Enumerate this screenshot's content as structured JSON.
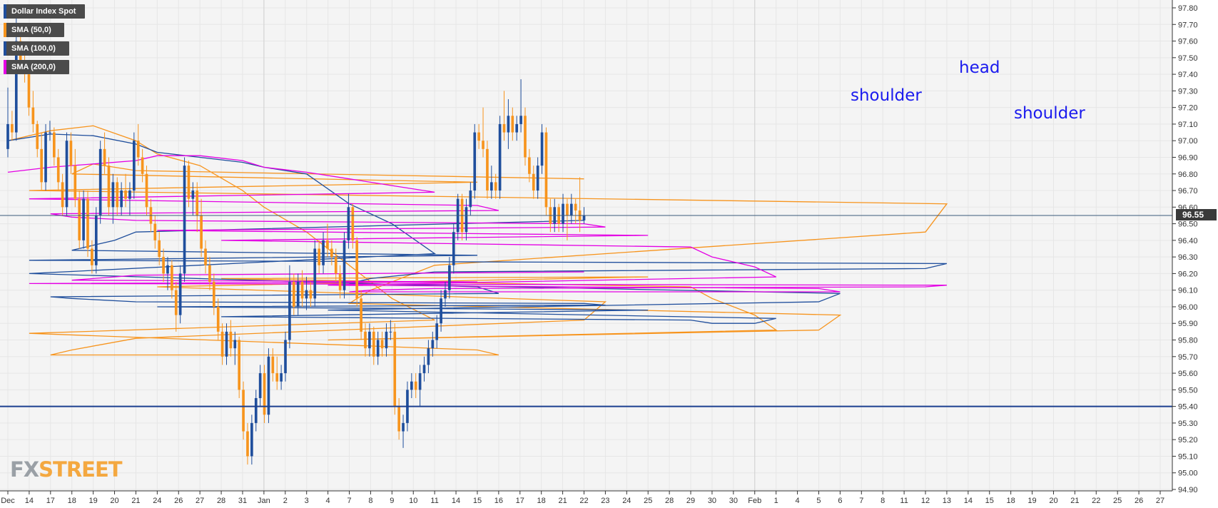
{
  "legend": [
    {
      "label": "Dollar Index Spot",
      "color": "#1f4e9c"
    },
    {
      "label": "SMA (50,0)",
      "color": "#f7941d"
    },
    {
      "label": "SMA (100,0)",
      "color": "#1f4e9c"
    },
    {
      "label": "SMA (200,0)",
      "color": "#e400e4"
    }
  ],
  "annotations": {
    "left_shoulder": "shoulder",
    "head": "head",
    "right_shoulder": "shoulder"
  },
  "price_tag": "96.55",
  "logo": {
    "fx": "FX",
    "street": "STREET"
  },
  "colors": {
    "bull_candle": "#1f4e9c",
    "bear_candle": "#f7941d",
    "support_line": "#1b3f8f",
    "annotation": "#1a1aee",
    "sma50": "#f7941d",
    "sma100": "#1f4e9c",
    "sma200": "#e400e4"
  },
  "chart_data": {
    "type": "line",
    "title": "Dollar Index Spot",
    "ylim": [
      94.9,
      97.8
    ],
    "y_ticks": [
      "97.80",
      "97.70",
      "97.60",
      "97.50",
      "97.40",
      "97.30",
      "97.20",
      "97.10",
      "97.00",
      "96.90",
      "96.80",
      "96.70",
      "96.60",
      "96.50",
      "96.40",
      "96.30",
      "96.20",
      "96.10",
      "96.00",
      "95.90",
      "95.80",
      "95.70",
      "95.60",
      "95.50",
      "95.40",
      "95.30",
      "95.20",
      "95.10",
      "95.00",
      "94.90"
    ],
    "x_ticks": [
      "Dec",
      "14",
      "17",
      "18",
      "19",
      "20",
      "21",
      "24",
      "26",
      "27",
      "28",
      "31",
      "Jan",
      "2",
      "3",
      "4",
      "7",
      "8",
      "9",
      "10",
      "11",
      "14",
      "15",
      "16",
      "17",
      "18",
      "21",
      "22",
      "23",
      "24",
      "25",
      "28",
      "29",
      "30",
      "30",
      "Feb",
      "1",
      "4",
      "5",
      "6",
      "7",
      "8",
      "11",
      "12",
      "13",
      "14",
      "15",
      "18",
      "19",
      "20",
      "21",
      "22",
      "25",
      "26",
      "27"
    ],
    "grid": true,
    "current_price": 96.55,
    "support_level": 95.4,
    "series": [
      {
        "name": "SMA (50,0)",
        "color": "#f7941d",
        "x": [
          "Dec",
          "17",
          "19",
          "21",
          "24",
          "27",
          "31",
          "Jan",
          "3",
          "7",
          "9",
          "11",
          "14",
          "15",
          "16",
          "17",
          "18",
          "21",
          "22",
          "23",
          "24",
          "25",
          "28",
          "29",
          "30",
          "Feb",
          "1",
          "4",
          "5",
          "6",
          "7",
          "8",
          "11",
          "12",
          "13",
          "14",
          "15",
          "18",
          "19",
          "20",
          "21",
          "22"
        ],
        "values": [
          97.0,
          97.06,
          97.09,
          97.0,
          96.92,
          96.85,
          96.7,
          96.6,
          96.45,
          96.25,
          96.05,
          95.92,
          95.84,
          95.74,
          95.71,
          95.71,
          95.74,
          95.81,
          95.92,
          96.03,
          96.12,
          96.18,
          96.17,
          96.12,
          96.05,
          95.95,
          95.86,
          95.8,
          95.86,
          95.95,
          96.02,
          96.1,
          96.25,
          96.45,
          96.62,
          96.7,
          96.75,
          96.8,
          96.86,
          96.84,
          96.82,
          96.77
        ]
      },
      {
        "name": "SMA (100,0)",
        "color": "#1f4e9c",
        "x": [
          "Dec",
          "17",
          "19",
          "21",
          "24",
          "27",
          "31",
          "Jan",
          "3",
          "7",
          "9",
          "11",
          "14",
          "15",
          "16",
          "17",
          "18",
          "21",
          "22",
          "23",
          "24",
          "25",
          "28",
          "29",
          "30",
          "Feb",
          "1",
          "4",
          "5",
          "6",
          "7",
          "8",
          "11",
          "12",
          "13",
          "14",
          "15",
          "18",
          "19",
          "20",
          "21",
          "22"
        ],
        "values": [
          97.0,
          97.04,
          97.03,
          96.98,
          96.93,
          96.9,
          96.87,
          96.84,
          96.8,
          96.62,
          96.5,
          96.32,
          96.2,
          96.12,
          96.08,
          96.06,
          96.05,
          96.03,
          96.02,
          96.01,
          96.0,
          95.98,
          95.94,
          95.92,
          95.9,
          95.9,
          95.93,
          95.98,
          96.03,
          96.08,
          96.14,
          96.17,
          96.21,
          96.23,
          96.26,
          96.28,
          96.31,
          96.34,
          96.37,
          96.4,
          96.45,
          96.52
        ]
      },
      {
        "name": "SMA (200,0)",
        "color": "#e400e4",
        "x": [
          "Dec",
          "17",
          "19",
          "21",
          "24",
          "27",
          "31",
          "Jan",
          "3",
          "7",
          "9",
          "11",
          "14",
          "15",
          "16",
          "17",
          "18",
          "21",
          "22",
          "23",
          "24",
          "25",
          "28",
          "29",
          "30",
          "Feb",
          "1",
          "4",
          "5",
          "6",
          "7",
          "8",
          "11",
          "12",
          "13",
          "14",
          "15",
          "18",
          "19",
          "20",
          "21",
          "22"
        ],
        "values": [
          96.81,
          96.84,
          96.86,
          96.88,
          96.91,
          96.91,
          96.88,
          96.84,
          96.81,
          96.77,
          96.73,
          96.69,
          96.65,
          96.61,
          96.58,
          96.56,
          96.54,
          96.52,
          96.5,
          96.48,
          96.46,
          96.43,
          96.4,
          96.36,
          96.3,
          96.24,
          96.18,
          96.13,
          96.11,
          96.09,
          96.09,
          96.1,
          96.11,
          96.12,
          96.13,
          96.14,
          96.15,
          96.16,
          96.17,
          96.18,
          96.19,
          96.21
        ]
      }
    ],
    "candles_ohlc": [
      [
        96.95,
        97.32,
        96.9,
        97.1
      ],
      [
        97.1,
        97.18,
        97.0,
        97.05
      ],
      [
        97.05,
        97.8,
        97.0,
        97.6
      ],
      [
        97.6,
        97.65,
        97.4,
        97.45
      ],
      [
        97.45,
        97.55,
        97.35,
        97.4
      ],
      [
        97.4,
        97.42,
        97.15,
        97.2
      ],
      [
        97.2,
        97.3,
        97.05,
        97.1
      ],
      [
        97.1,
        97.12,
        96.9,
        96.95
      ],
      [
        96.95,
        97.05,
        96.7,
        96.75
      ],
      [
        96.75,
        97.1,
        96.7,
        97.05
      ],
      [
        97.05,
        97.12,
        97.0,
        97.05
      ],
      [
        97.05,
        97.08,
        96.85,
        96.9
      ],
      [
        96.9,
        96.95,
        96.7,
        96.75
      ],
      [
        96.75,
        96.8,
        96.55,
        96.6
      ],
      [
        96.6,
        97.05,
        96.55,
        97.0
      ],
      [
        97.0,
        97.05,
        96.8,
        96.85
      ],
      [
        96.85,
        96.95,
        96.6,
        96.65
      ],
      [
        96.65,
        96.7,
        96.35,
        96.4
      ],
      [
        96.4,
        96.7,
        96.35,
        96.65
      ],
      [
        96.65,
        96.7,
        96.3,
        96.35
      ],
      [
        96.35,
        96.4,
        96.2,
        96.25
      ],
      [
        96.25,
        96.6,
        96.2,
        96.55
      ],
      [
        96.55,
        97.0,
        96.5,
        96.95
      ],
      [
        96.95,
        97.05,
        96.8,
        96.85
      ],
      [
        96.85,
        96.9,
        96.55,
        96.6
      ],
      [
        96.6,
        96.8,
        96.5,
        96.75
      ],
      [
        96.75,
        96.78,
        96.55,
        96.6
      ],
      [
        96.6,
        96.75,
        96.55,
        96.7
      ],
      [
        96.7,
        96.8,
        96.6,
        96.65
      ],
      [
        96.65,
        96.75,
        96.55,
        96.7
      ],
      [
        96.7,
        97.05,
        96.65,
        97.0
      ],
      [
        97.0,
        97.1,
        96.85,
        96.9
      ],
      [
        96.9,
        96.95,
        96.75,
        96.8
      ],
      [
        96.8,
        96.85,
        96.55,
        96.6
      ],
      [
        96.6,
        96.65,
        96.45,
        96.5
      ],
      [
        96.5,
        96.55,
        96.35,
        96.4
      ],
      [
        96.4,
        96.45,
        96.25,
        96.3
      ],
      [
        96.3,
        96.35,
        96.15,
        96.2
      ],
      [
        96.2,
        96.3,
        96.1,
        96.25
      ],
      [
        96.25,
        96.28,
        96.05,
        96.1
      ],
      [
        96.1,
        96.15,
        95.85,
        95.95
      ],
      [
        95.95,
        96.25,
        95.9,
        96.2
      ],
      [
        96.2,
        96.9,
        96.15,
        96.85
      ],
      [
        96.85,
        96.88,
        96.6,
        96.65
      ],
      [
        96.65,
        96.75,
        96.55,
        96.7
      ],
      [
        96.7,
        96.75,
        96.45,
        96.55
      ],
      [
        96.55,
        96.65,
        96.3,
        96.35
      ],
      [
        96.35,
        96.4,
        96.2,
        96.25
      ],
      [
        96.25,
        96.3,
        96.1,
        96.15
      ],
      [
        96.15,
        96.2,
        95.95,
        96.0
      ],
      [
        96.0,
        96.05,
        95.8,
        95.85
      ],
      [
        95.85,
        95.9,
        95.65,
        95.7
      ],
      [
        95.7,
        95.9,
        95.65,
        95.85
      ],
      [
        95.85,
        95.92,
        95.7,
        95.75
      ],
      [
        95.75,
        95.85,
        95.65,
        95.8
      ],
      [
        95.8,
        95.82,
        95.45,
        95.5
      ],
      [
        95.5,
        95.55,
        95.2,
        95.25
      ],
      [
        95.25,
        95.3,
        95.05,
        95.1
      ],
      [
        95.1,
        95.35,
        95.05,
        95.3
      ],
      [
        95.3,
        95.5,
        95.25,
        95.45
      ],
      [
        95.45,
        95.65,
        95.4,
        95.6
      ],
      [
        95.6,
        95.65,
        95.3,
        95.35
      ],
      [
        95.35,
        95.75,
        95.3,
        95.7
      ],
      [
        95.7,
        95.75,
        95.55,
        95.6
      ],
      [
        95.6,
        95.7,
        95.5,
        95.55
      ],
      [
        95.55,
        95.65,
        95.5,
        95.6
      ],
      [
        95.6,
        95.85,
        95.55,
        95.8
      ],
      [
        95.8,
        96.25,
        95.75,
        96.15
      ],
      [
        96.15,
        96.2,
        95.95,
        96.0
      ],
      [
        96.0,
        96.2,
        95.95,
        96.15
      ],
      [
        96.15,
        96.22,
        96.0,
        96.05
      ],
      [
        96.05,
        96.18,
        95.98,
        96.1
      ],
      [
        96.1,
        96.15,
        96.0,
        96.05
      ],
      [
        96.05,
        96.4,
        96.0,
        96.35
      ],
      [
        96.35,
        96.4,
        96.2,
        96.25
      ],
      [
        96.25,
        96.45,
        96.2,
        96.4
      ],
      [
        96.4,
        96.5,
        96.3,
        96.35
      ],
      [
        96.35,
        96.4,
        96.25,
        96.3
      ],
      [
        96.3,
        96.35,
        96.15,
        96.2
      ],
      [
        96.2,
        96.25,
        96.05,
        96.1
      ],
      [
        96.1,
        96.45,
        96.05,
        96.4
      ],
      [
        96.4,
        96.68,
        96.35,
        96.6
      ],
      [
        96.6,
        96.62,
        96.35,
        96.4
      ],
      [
        96.4,
        96.42,
        96.0,
        96.05
      ],
      [
        96.05,
        96.1,
        95.8,
        95.85
      ],
      [
        95.85,
        95.9,
        95.7,
        95.75
      ],
      [
        95.75,
        95.9,
        95.7,
        95.85
      ],
      [
        95.85,
        95.88,
        95.65,
        95.7
      ],
      [
        95.7,
        95.85,
        95.65,
        95.8
      ],
      [
        95.8,
        95.85,
        95.7,
        95.75
      ],
      [
        95.75,
        95.9,
        95.7,
        95.85
      ],
      [
        95.85,
        95.92,
        95.8,
        95.85
      ],
      [
        95.85,
        95.9,
        95.35,
        95.4
      ],
      [
        95.4,
        95.45,
        95.2,
        95.25
      ],
      [
        95.25,
        95.35,
        95.15,
        95.3
      ],
      [
        95.3,
        95.55,
        95.25,
        95.5
      ],
      [
        95.5,
        95.6,
        95.45,
        95.55
      ],
      [
        95.55,
        95.6,
        95.45,
        95.5
      ],
      [
        95.5,
        95.65,
        95.4,
        95.6
      ],
      [
        95.6,
        95.7,
        95.55,
        95.65
      ],
      [
        95.65,
        95.8,
        95.6,
        95.75
      ],
      [
        95.75,
        95.85,
        95.7,
        95.8
      ],
      [
        95.8,
        95.95,
        95.75,
        95.9
      ],
      [
        95.9,
        96.1,
        95.85,
        96.05
      ],
      [
        96.05,
        96.15,
        96.0,
        96.1
      ],
      [
        96.1,
        96.3,
        96.05,
        96.25
      ],
      [
        96.25,
        96.5,
        96.2,
        96.45
      ],
      [
        96.45,
        96.68,
        96.4,
        96.65
      ],
      [
        96.65,
        96.68,
        96.4,
        96.45
      ],
      [
        96.45,
        96.65,
        96.4,
        96.6
      ],
      [
        96.6,
        96.75,
        96.55,
        96.7
      ],
      [
        96.7,
        97.1,
        96.65,
        97.05
      ],
      [
        97.05,
        97.1,
        96.95,
        97.0
      ],
      [
        97.0,
        97.2,
        96.9,
        96.95
      ],
      [
        96.95,
        97.0,
        96.65,
        96.7
      ],
      [
        96.7,
        96.85,
        96.65,
        96.75
      ],
      [
        96.75,
        96.8,
        96.65,
        96.7
      ],
      [
        96.7,
        97.15,
        96.65,
        97.1
      ],
      [
        97.1,
        97.3,
        97.0,
        97.05
      ],
      [
        97.05,
        97.25,
        96.95,
        97.15
      ],
      [
        97.15,
        97.2,
        97.0,
        97.05
      ],
      [
        97.05,
        97.15,
        97.0,
        97.1
      ],
      [
        97.1,
        97.37,
        97.05,
        97.15
      ],
      [
        97.15,
        97.2,
        96.85,
        96.9
      ],
      [
        96.9,
        96.95,
        96.75,
        96.8
      ],
      [
        96.8,
        96.85,
        96.65,
        96.7
      ],
      [
        96.7,
        96.9,
        96.65,
        96.85
      ],
      [
        96.85,
        97.1,
        96.8,
        97.05
      ],
      [
        97.05,
        97.08,
        96.55,
        96.6
      ],
      [
        96.6,
        96.65,
        96.45,
        96.5
      ],
      [
        96.5,
        96.65,
        96.45,
        96.6
      ],
      [
        96.6,
        96.62,
        96.45,
        96.5
      ],
      [
        96.5,
        96.68,
        96.45,
        96.62
      ],
      [
        96.62,
        96.65,
        96.4,
        96.55
      ],
      [
        96.55,
        96.68,
        96.5,
        96.62
      ],
      [
        96.62,
        96.65,
        96.5,
        96.58
      ],
      [
        96.58,
        96.78,
        96.45,
        96.52
      ],
      [
        96.52,
        96.6,
        96.5,
        96.55
      ]
    ]
  }
}
